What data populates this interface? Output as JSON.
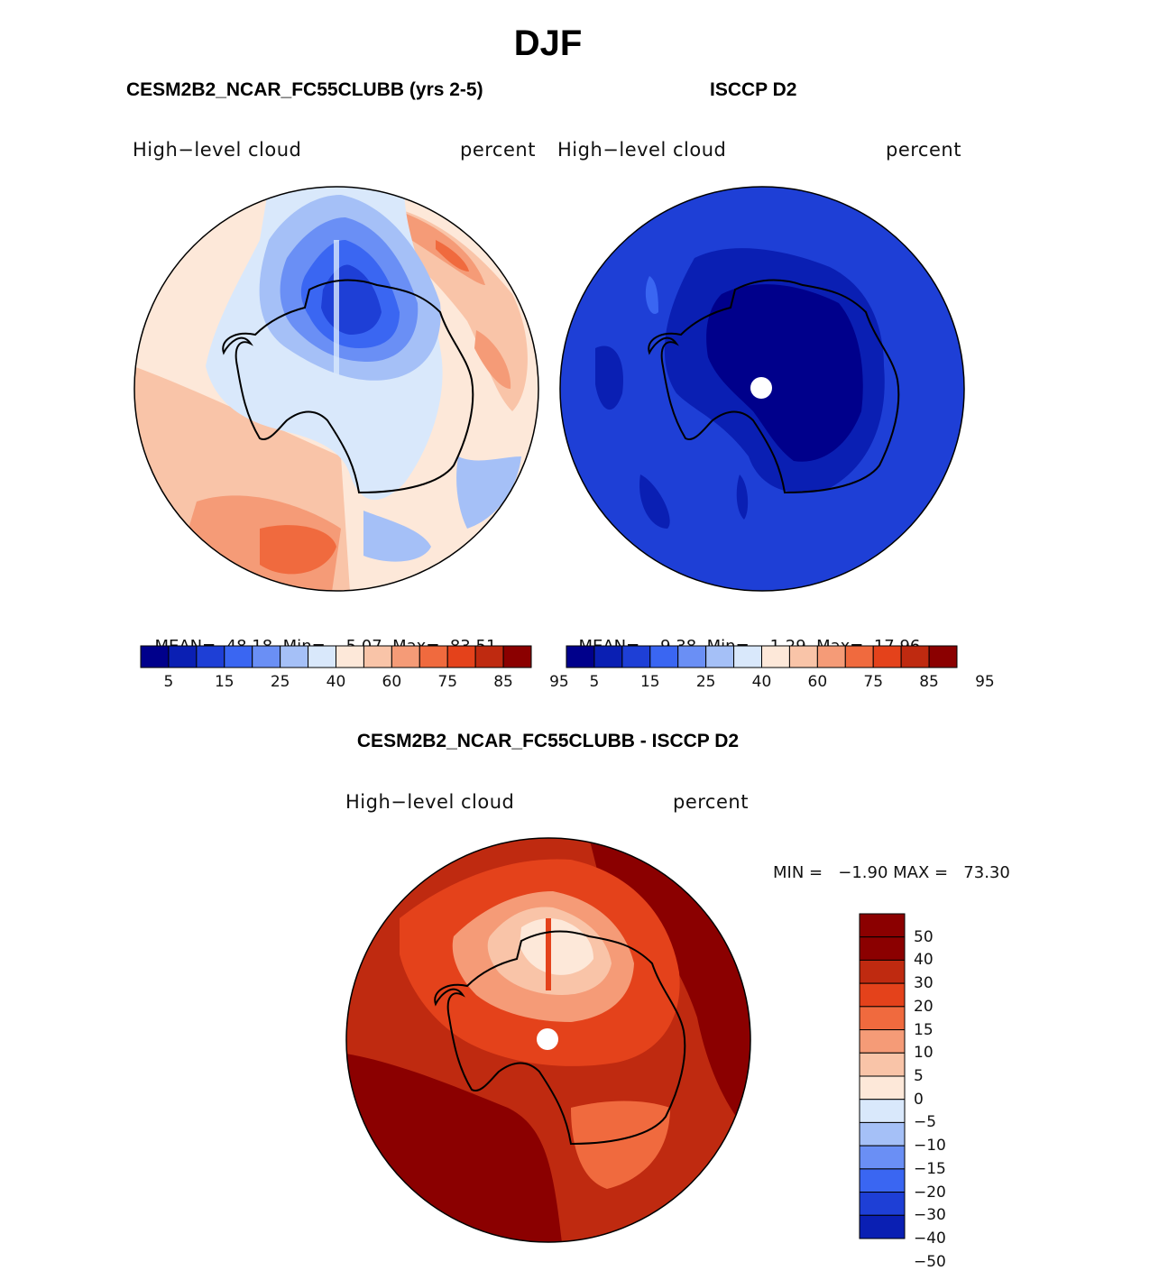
{
  "figure": {
    "season": "DJF",
    "diff_title": "CESM2B2_NCAR_FC55CLUBB - ISCCP D2"
  },
  "colors": {
    "abs_levels": [
      "#00008b",
      "#0a1fb3",
      "#1e3fd6",
      "#3a66f2",
      "#6a8ff5",
      "#a5c0f7",
      "#d9e8fb",
      "#fde8d9",
      "#f9c4a8",
      "#f59b77",
      "#f06a3e",
      "#e4421b",
      "#bf2a10",
      "#8b0000"
    ],
    "diff_levels": [
      "#00008b",
      "#0a1fb3",
      "#1e3fd6",
      "#3a66f2",
      "#6a8ff5",
      "#a5c0f7",
      "#d9e8fb",
      "#fde8d9",
      "#f9c4a8",
      "#f59b77",
      "#f06a3e",
      "#e4421b",
      "#bf2a10",
      "#8b0000"
    ],
    "coast": "#000000"
  },
  "chart_data": [
    {
      "type": "heatmap",
      "projection": "south-polar-stereographic",
      "title": "CESM2B2_NCAR_FC55CLUBB (yrs 2-5)",
      "left_label": "High−level cloud",
      "right_label": "percent",
      "stats": {
        "mean_label": "MEAN=",
        "mean": "48.18",
        "min_label": "Min=",
        "min": "5.07",
        "max_label": "Max=",
        "max": "83.51"
      },
      "colorbar": {
        "orientation": "horizontal",
        "levels": [
          5,
          10,
          15,
          20,
          25,
          30,
          40,
          50,
          60,
          70,
          75,
          80,
          85,
          90,
          95
        ],
        "tick_labels": [
          "5",
          "15",
          "25",
          "40",
          "60",
          "75",
          "85",
          "95"
        ]
      }
    },
    {
      "type": "heatmap",
      "projection": "south-polar-stereographic",
      "title": "ISCCP D2",
      "left_label": "High−level cloud",
      "right_label": "percent",
      "stats": {
        "mean_label": "MEAN=",
        "mean": "9.38",
        "min_label": "Min=",
        "min": "1.29",
        "max_label": "Max=",
        "max": "17.96"
      },
      "colorbar": {
        "orientation": "horizontal",
        "levels": [
          5,
          10,
          15,
          20,
          25,
          30,
          40,
          50,
          60,
          70,
          75,
          80,
          85,
          90,
          95
        ],
        "tick_labels": [
          "5",
          "15",
          "25",
          "40",
          "60",
          "75",
          "85",
          "95"
        ]
      }
    },
    {
      "type": "heatmap",
      "projection": "south-polar-stereographic",
      "title": "CESM2B2_NCAR_FC55CLUBB - ISCCP D2",
      "left_label": "High−level cloud",
      "right_label": "percent",
      "stats": {
        "text": "MIN =   −1.90 MAX =   73.30",
        "min": -1.9,
        "max": 73.3
      },
      "colorbar": {
        "orientation": "vertical",
        "levels": [
          -50,
          -40,
          -30,
          -20,
          -15,
          -10,
          -5,
          0,
          5,
          10,
          15,
          20,
          30,
          40,
          50
        ],
        "tick_labels": [
          "50",
          "40",
          "30",
          "20",
          "15",
          "10",
          "5",
          "0",
          "−5",
          "−10",
          "−15",
          "−20",
          "−30",
          "−40",
          "−50"
        ]
      }
    }
  ]
}
